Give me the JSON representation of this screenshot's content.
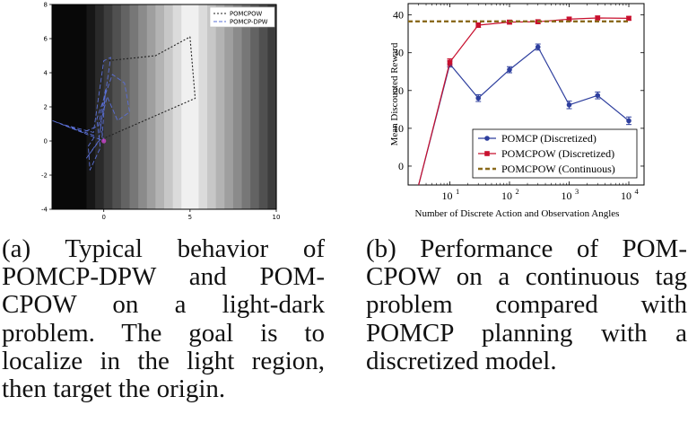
{
  "chart_data": [
    {
      "type": "line",
      "panel": "a",
      "title": "",
      "xlabel": "",
      "ylabel": "",
      "xlim": [
        -3,
        10
      ],
      "ylim": [
        -4,
        8
      ],
      "xticks": [
        0,
        5,
        10
      ],
      "yticks": [
        -4,
        -2,
        0,
        2,
        4,
        6,
        8
      ],
      "background": "light-dark gradient, darkest at x≈-1, brightest at x≈5",
      "legend": {
        "position": "top-right",
        "entries": [
          "POMCPOW",
          "POMCP-DPW"
        ]
      },
      "series": [
        {
          "name": "POMCPOW",
          "color": "#222222",
          "style": "dotted",
          "points": [
            [
              0.1,
              0.2
            ],
            [
              5.3,
              2.5
            ],
            [
              5.0,
              6.1
            ],
            [
              3.0,
              5.0
            ],
            [
              0.2,
              4.7
            ]
          ]
        },
        {
          "name": "POMCP-DPW",
          "color": "#5a6fd6",
          "style": "dashed",
          "points": [
            [
              -0.1,
              0.2
            ],
            [
              0.1,
              3.0
            ],
            [
              -0.3,
              0.9
            ],
            [
              -1.2,
              0.5
            ],
            [
              -3.0,
              1.2
            ],
            [
              -0.5,
              0.3
            ],
            [
              -0.9,
              -0.3
            ],
            [
              -0.8,
              -1.7
            ],
            [
              -0.2,
              -0.4
            ],
            [
              -0.4,
              1.3
            ],
            [
              0.5,
              3.9
            ],
            [
              1.2,
              3.4
            ],
            [
              1.5,
              1.7
            ],
            [
              0.8,
              1.2
            ],
            [
              0.2,
              2.6
            ],
            [
              -0.2,
              1.0
            ],
            [
              0.0,
              0.0
            ],
            [
              -2.5,
              1.0
            ],
            [
              -0.6,
              0.5
            ],
            [
              0.0,
              4.7
            ],
            [
              0.4,
              4.9
            ],
            [
              -0.3,
              0.0
            ],
            [
              -1.0,
              -1.0
            ],
            [
              -0.2,
              0.1
            ]
          ]
        }
      ],
      "markers": [
        {
          "x": 0,
          "y": 0,
          "label": "origin",
          "color": "#cc44cc"
        }
      ]
    },
    {
      "type": "line",
      "panel": "b",
      "title": "",
      "xlabel": "Number of Discrete Action and Observation Angles",
      "ylabel": "Mean Discounted Reward",
      "xscale": "log",
      "xlim": [
        2,
        18000
      ],
      "ylim": [
        -5,
        43
      ],
      "xticks": [
        10,
        100,
        1000,
        10000
      ],
      "xtick_labels": [
        "10",
        "10",
        "10",
        "10"
      ],
      "xtick_exponents": [
        "1",
        "2",
        "3",
        "4"
      ],
      "yticks": [
        0,
        10,
        20,
        30,
        40
      ],
      "ytick_labels": [
        "0",
        "10",
        "20",
        "30",
        "40"
      ],
      "legend": {
        "position": "bottom-right"
      },
      "series": [
        {
          "name": "POMCP (Discretized)",
          "color": "#2e3f9e",
          "marker": "circle",
          "x": [
            3,
            10,
            30,
            100,
            300,
            1000,
            3000,
            10000
          ],
          "y": [
            -5,
            27.0,
            18.0,
            25.5,
            31.5,
            16.2,
            18.7,
            12.0
          ],
          "err": [
            0,
            0.8,
            0.9,
            0.8,
            0.8,
            1.0,
            0.9,
            1.0
          ]
        },
        {
          "name": "POMCPOW (Discretized)",
          "color": "#c8102e",
          "marker": "square",
          "x": [
            3,
            10,
            30,
            100,
            300,
            1000,
            3000,
            10000
          ],
          "y": [
            -5,
            27.5,
            37.3,
            38.1,
            38.2,
            38.9,
            39.2,
            39.1
          ],
          "err": [
            0,
            0.9,
            0.6,
            0.5,
            0.5,
            0.5,
            0.5,
            0.5
          ]
        },
        {
          "name": "POMCPOW (Continuous)",
          "color": "#8a6a1c",
          "style": "dashed",
          "x": [
            2,
            10000
          ],
          "y": [
            38.3,
            38.3
          ]
        }
      ]
    }
  ],
  "captions": {
    "a": "(a) Typical behavior of POMCP-DPW and POM-CPOW on a light-dark problem. The goal is to localize in the light region, then target the origin.",
    "b": "(b) Performance of POM-CPOW on a continuous tag problem compared with POMCP planning with a discretized model."
  }
}
